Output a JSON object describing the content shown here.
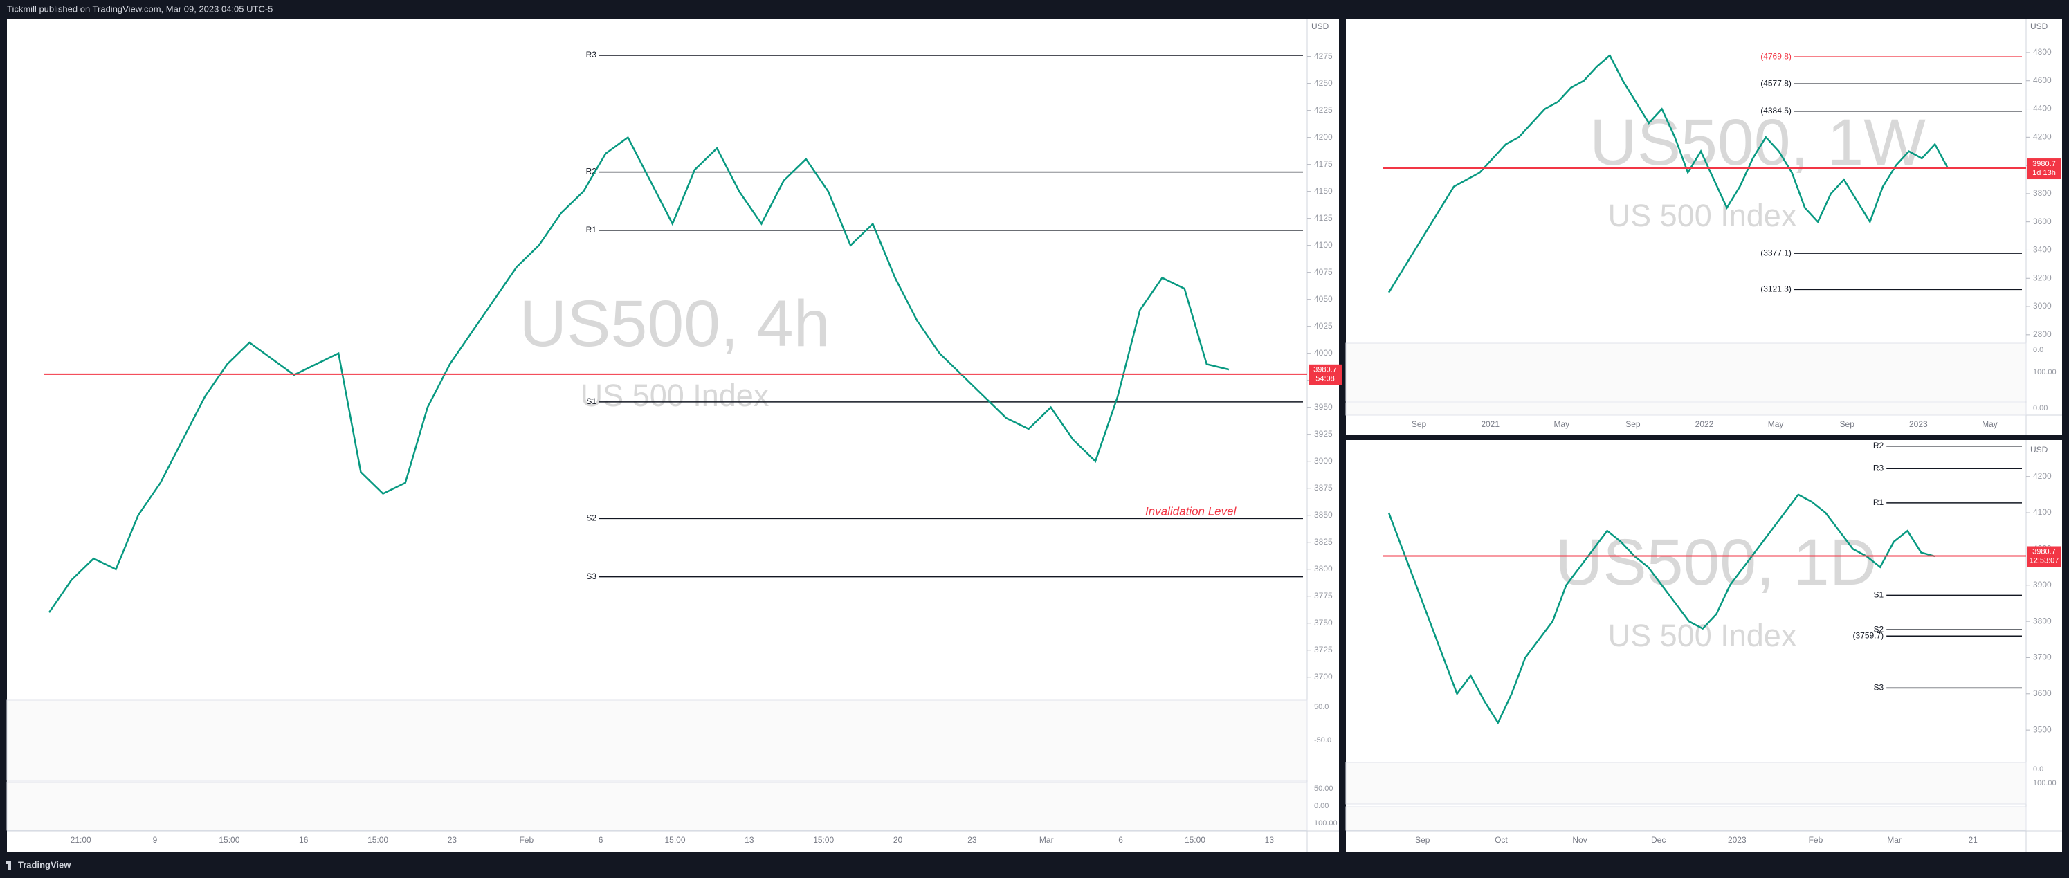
{
  "header": {
    "text": "Tickmill published on TradingView.com, Mar 09, 2023 04:05 UTC-5"
  },
  "footer": {
    "brand": "TradingView"
  },
  "panels": [
    {
      "title": "US500, 4h",
      "subtitle": "US 500 Index",
      "currency": "USD",
      "ylim": [
        3680,
        4310
      ],
      "yticks": [
        3700,
        3725,
        3750,
        3775,
        3800,
        3825,
        3850,
        3875,
        3900,
        3925,
        3950,
        3975,
        4000,
        4025,
        4050,
        4075,
        4100,
        4125,
        4150,
        4175,
        4200,
        4225,
        4250,
        4275
      ],
      "xlabels": [
        "21:00",
        "9",
        "15:00",
        "16",
        "15:00",
        "23",
        "Feb",
        "6",
        "15:00",
        "13",
        "15:00",
        "20",
        "23",
        "Mar",
        "6",
        "15:00",
        "13"
      ],
      "closes": [
        3760,
        3790,
        3810,
        3800,
        3850,
        3880,
        3920,
        3960,
        3990,
        4010,
        3995,
        3980,
        3990,
        4000,
        3890,
        3870,
        3880,
        3950,
        3990,
        4020,
        4050,
        4080,
        4100,
        4130,
        4150,
        4185,
        4200,
        4160,
        4120,
        4170,
        4190,
        4150,
        4120,
        4160,
        4180,
        4150,
        4100,
        4120,
        4070,
        4030,
        4000,
        3980,
        3960,
        3940,
        3930,
        3950,
        3920,
        3900,
        3960,
        4040,
        4070,
        4060,
        3990,
        3985
      ],
      "levels": [
        {
          "value": 4276,
          "label": "R3"
        },
        {
          "value": 4168,
          "label": "R2"
        },
        {
          "value": 4114,
          "label": "R1"
        },
        {
          "value": 3955,
          "label": "S1"
        },
        {
          "value": 3847,
          "label": "S2"
        },
        {
          "value": 3793,
          "label": "S3"
        }
      ],
      "last_price": 3980.7,
      "countdown": "54:08",
      "annotation": "Invalidation Level",
      "osc_labels": [
        "50.0",
        "-50.0",
        "100.00",
        "50.00",
        "0.00"
      ]
    },
    {
      "title": "US500, 1W",
      "subtitle": "US 500 Index",
      "currency": "USD",
      "ylim": [
        2760,
        5040
      ],
      "yticks": [
        2800,
        3000,
        3200,
        3400,
        3600,
        3800,
        4000,
        4200,
        4400,
        4600,
        4800
      ],
      "xlabels": [
        "Sep",
        "2021",
        "May",
        "Sep",
        "2022",
        "May",
        "Sep",
        "2023",
        "May"
      ],
      "closes": [
        3100,
        3250,
        3400,
        3550,
        3700,
        3850,
        3900,
        3950,
        4050,
        4150,
        4200,
        4300,
        4400,
        4450,
        4550,
        4600,
        4700,
        4780,
        4600,
        4450,
        4300,
        4400,
        4200,
        3950,
        4100,
        3900,
        3700,
        3850,
        4050,
        4200,
        4100,
        3950,
        3700,
        3600,
        3800,
        3900,
        3750,
        3600,
        3850,
        4000,
        4100,
        4050,
        4150,
        3980
      ],
      "levels": [
        {
          "value": 4769.8,
          "label": "(4769.8)"
        },
        {
          "value": 4577.8,
          "label": "(4577.8)"
        },
        {
          "value": 4384.5,
          "label": "(4384.5)"
        },
        {
          "value": 3377.1,
          "label": "(3377.1)"
        },
        {
          "value": 3121.3,
          "label": "(3121.3)"
        }
      ],
      "last_price": 3980.7,
      "countdown": "1d 13h",
      "osc_labels": [
        "0.0",
        "100.00",
        "0.00"
      ]
    },
    {
      "title": "US500, 1D",
      "subtitle": "US 500 Index",
      "currency": "USD",
      "ylim": [
        3420,
        4295
      ],
      "yticks": [
        3500,
        3600,
        3700,
        3800,
        3900,
        4000,
        4100,
        4200
      ],
      "xlabels": [
        "Sep",
        "Oct",
        "Nov",
        "Dec",
        "2023",
        "Feb",
        "Mar",
        "21"
      ],
      "closes": [
        4100,
        4000,
        3900,
        3800,
        3700,
        3600,
        3650,
        3580,
        3520,
        3600,
        3700,
        3750,
        3800,
        3900,
        3950,
        4000,
        4050,
        4020,
        3980,
        3950,
        3900,
        3850,
        3800,
        3780,
        3820,
        3900,
        3950,
        4000,
        4050,
        4100,
        4150,
        4130,
        4100,
        4050,
        4000,
        3980,
        3950,
        4020,
        4050,
        3990,
        3980
      ],
      "levels": [
        {
          "value": 4284,
          "label": "R2"
        },
        {
          "value": 4222,
          "label": "R3"
        },
        {
          "value": 4127,
          "label": "R1"
        },
        {
          "value": 3872,
          "label": "S1"
        },
        {
          "value": 3777,
          "label": "S2"
        },
        {
          "value": 3759.7,
          "label": "(3759.7)"
        },
        {
          "value": 3616,
          "label": "S3"
        }
      ],
      "last_price": 3980.7,
      "countdown": "12:53:07",
      "osc_labels": [
        "0.0",
        "100.00"
      ]
    }
  ]
}
